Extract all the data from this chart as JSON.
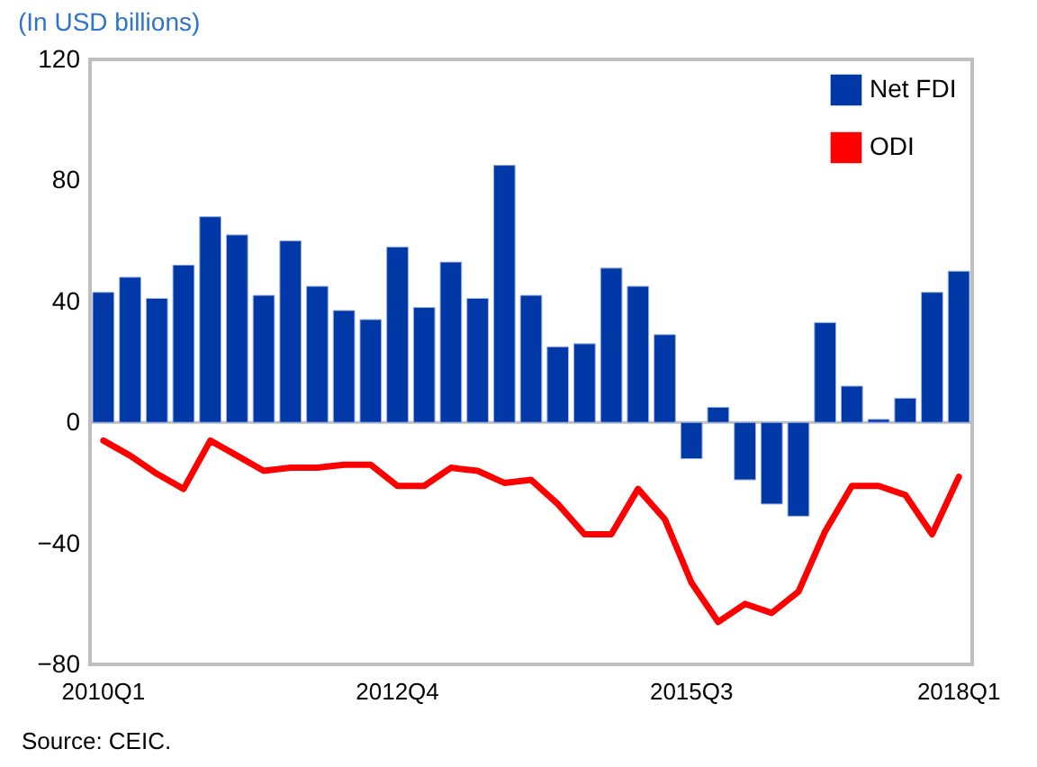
{
  "chart_data": {
    "type": "bar",
    "ylabel": "(In USD billions)",
    "annotations": [
      "Source: CEIC."
    ],
    "categories": [
      "2010Q1",
      null,
      null,
      null,
      null,
      null,
      null,
      null,
      null,
      null,
      null,
      "2012Q4",
      null,
      null,
      null,
      null,
      null,
      null,
      null,
      null,
      null,
      null,
      "2015Q3",
      null,
      null,
      null,
      null,
      null,
      null,
      null,
      null,
      null,
      "2018Q1"
    ],
    "series": [
      {
        "name": "Net FDI",
        "color": "#0038a8",
        "values": [
          43,
          48,
          41,
          52,
          68,
          62,
          42,
          60,
          45,
          37,
          34,
          58,
          38,
          53,
          41,
          85,
          42,
          25,
          26,
          51,
          45,
          29,
          -12,
          5,
          -19,
          -27,
          -31,
          33,
          12,
          1,
          8,
          43,
          50
        ]
      },
      {
        "name": "ODI",
        "type": "line",
        "color": "#ff0000",
        "values": [
          -6,
          -11,
          -17,
          -22,
          -6,
          -11,
          -16,
          -15,
          -15,
          -14,
          -14,
          -21,
          -21,
          -15,
          -16,
          -20,
          -19,
          -27,
          -37,
          -37,
          -22,
          -32,
          -53,
          -66,
          -60,
          -63,
          -56,
          -36,
          -21,
          -21,
          -24,
          -37,
          -18
        ]
      }
    ],
    "ylim": [
      -80,
      120
    ],
    "yticks": [
      -80,
      -40,
      0,
      40,
      80,
      120
    ],
    "grid": false,
    "legend": "top right",
    "ref_lines": [
      {
        "axis": "y",
        "value": 0,
        "color": "#bfbfbf"
      }
    ]
  }
}
